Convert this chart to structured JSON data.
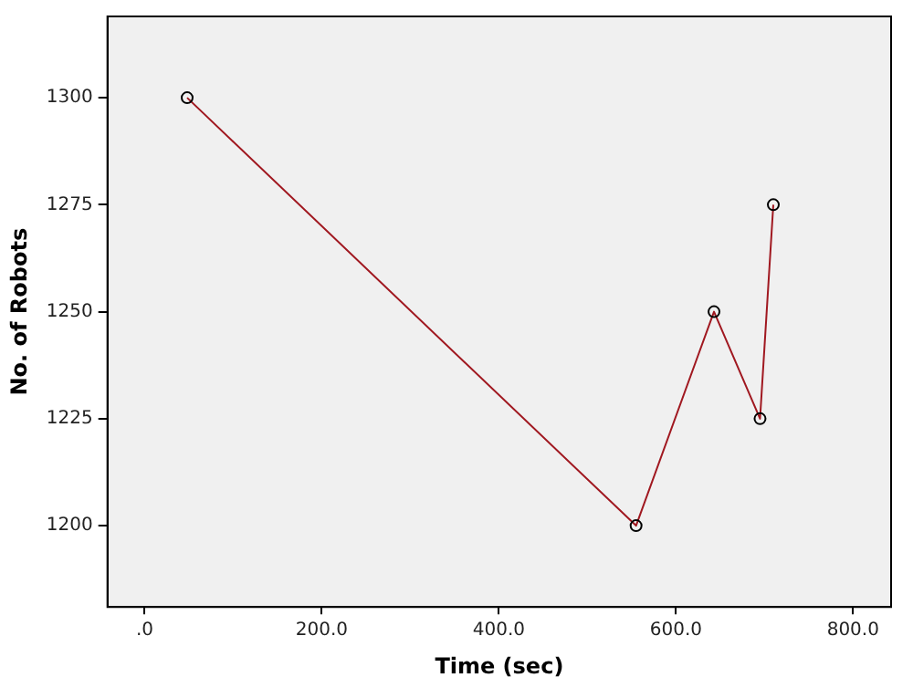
{
  "chart_data": {
    "type": "line",
    "xlabel": "Time (sec)",
    "ylabel": "No. of Robots",
    "x": [
      48,
      555,
      643,
      695,
      710
    ],
    "series": [
      {
        "color": "#a01820",
        "values": [
          1300,
          1200,
          1250,
          1225,
          1275
        ]
      }
    ],
    "xlim": [
      -42,
      843
    ],
    "ylim": [
      1181,
      1319
    ],
    "xticks": [
      {
        "value": 0,
        "label": ".0"
      },
      {
        "value": 200,
        "label": "200.0"
      },
      {
        "value": 400,
        "label": "400.0"
      },
      {
        "value": 600,
        "label": "600.0"
      },
      {
        "value": 800,
        "label": "800.0"
      }
    ],
    "yticks": [
      1200,
      1225,
      1250,
      1275,
      1300
    ],
    "legend": false,
    "marker": "circle",
    "line_style": "solid"
  }
}
